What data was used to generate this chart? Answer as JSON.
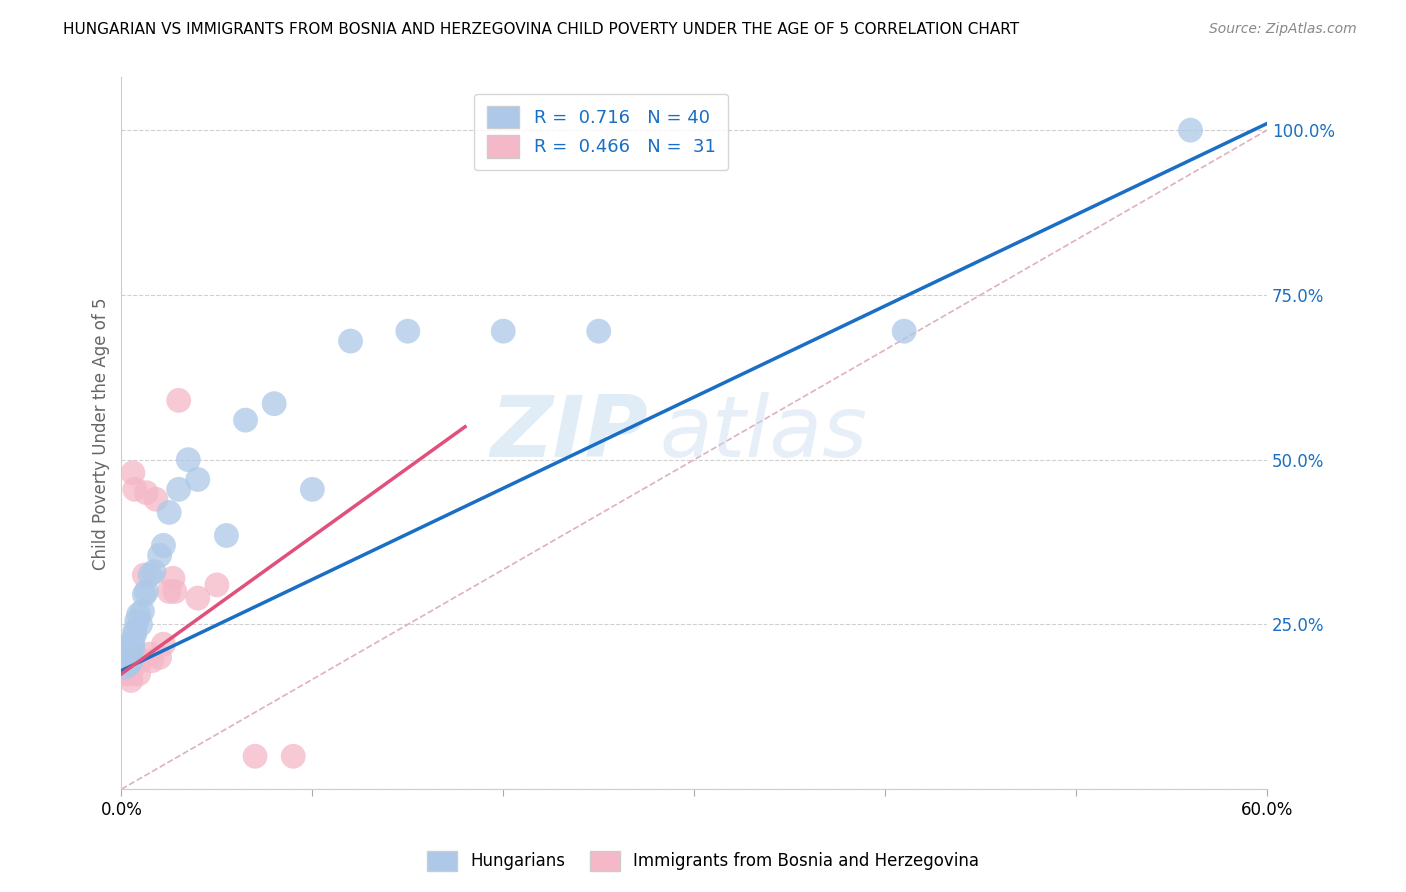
{
  "title": "HUNGARIAN VS IMMIGRANTS FROM BOSNIA AND HERZEGOVINA CHILD POVERTY UNDER THE AGE OF 5 CORRELATION CHART",
  "source": "Source: ZipAtlas.com",
  "ylabel": "Child Poverty Under the Age of 5",
  "xlim": [
    0.0,
    0.6
  ],
  "ylim": [
    0.0,
    1.08
  ],
  "R_blue": 0.716,
  "N_blue": 40,
  "R_pink": 0.466,
  "N_pink": 31,
  "blue_color": "#adc8e8",
  "pink_color": "#f4b8c8",
  "blue_line_color": "#1a6fc4",
  "pink_line_color": "#e0507a",
  "ref_line_color": "#e0b0c0",
  "legend_label_blue": "Hungarians",
  "legend_label_pink": "Immigrants from Bosnia and Herzegovina",
  "watermark_zip": "ZIP",
  "watermark_atlas": "atlas",
  "blue_scatter_x": [
    0.001,
    0.002,
    0.002,
    0.003,
    0.003,
    0.003,
    0.004,
    0.004,
    0.004,
    0.005,
    0.005,
    0.005,
    0.006,
    0.006,
    0.007,
    0.007,
    0.008,
    0.009,
    0.01,
    0.011,
    0.012,
    0.013,
    0.015,
    0.017,
    0.02,
    0.022,
    0.025,
    0.03,
    0.035,
    0.04,
    0.055,
    0.065,
    0.08,
    0.1,
    0.12,
    0.15,
    0.2,
    0.25,
    0.41,
    0.56
  ],
  "blue_scatter_y": [
    0.195,
    0.2,
    0.185,
    0.21,
    0.195,
    0.215,
    0.19,
    0.205,
    0.22,
    0.195,
    0.215,
    0.195,
    0.22,
    0.215,
    0.24,
    0.235,
    0.255,
    0.265,
    0.25,
    0.27,
    0.295,
    0.3,
    0.325,
    0.33,
    0.355,
    0.37,
    0.42,
    0.455,
    0.5,
    0.47,
    0.385,
    0.56,
    0.585,
    0.455,
    0.68,
    0.695,
    0.695,
    0.695,
    0.695,
    1.0
  ],
  "pink_scatter_x": [
    0.001,
    0.001,
    0.002,
    0.002,
    0.003,
    0.003,
    0.004,
    0.004,
    0.005,
    0.005,
    0.006,
    0.006,
    0.007,
    0.008,
    0.009,
    0.01,
    0.012,
    0.013,
    0.015,
    0.016,
    0.018,
    0.02,
    0.022,
    0.025,
    0.027,
    0.028,
    0.03,
    0.04,
    0.05,
    0.07,
    0.09
  ],
  "pink_scatter_y": [
    0.19,
    0.195,
    0.175,
    0.185,
    0.175,
    0.185,
    0.19,
    0.185,
    0.175,
    0.165,
    0.48,
    0.195,
    0.455,
    0.2,
    0.175,
    0.195,
    0.325,
    0.45,
    0.205,
    0.195,
    0.44,
    0.2,
    0.22,
    0.3,
    0.32,
    0.3,
    0.59,
    0.29,
    0.31,
    0.05,
    0.05
  ],
  "circle_size": 320
}
